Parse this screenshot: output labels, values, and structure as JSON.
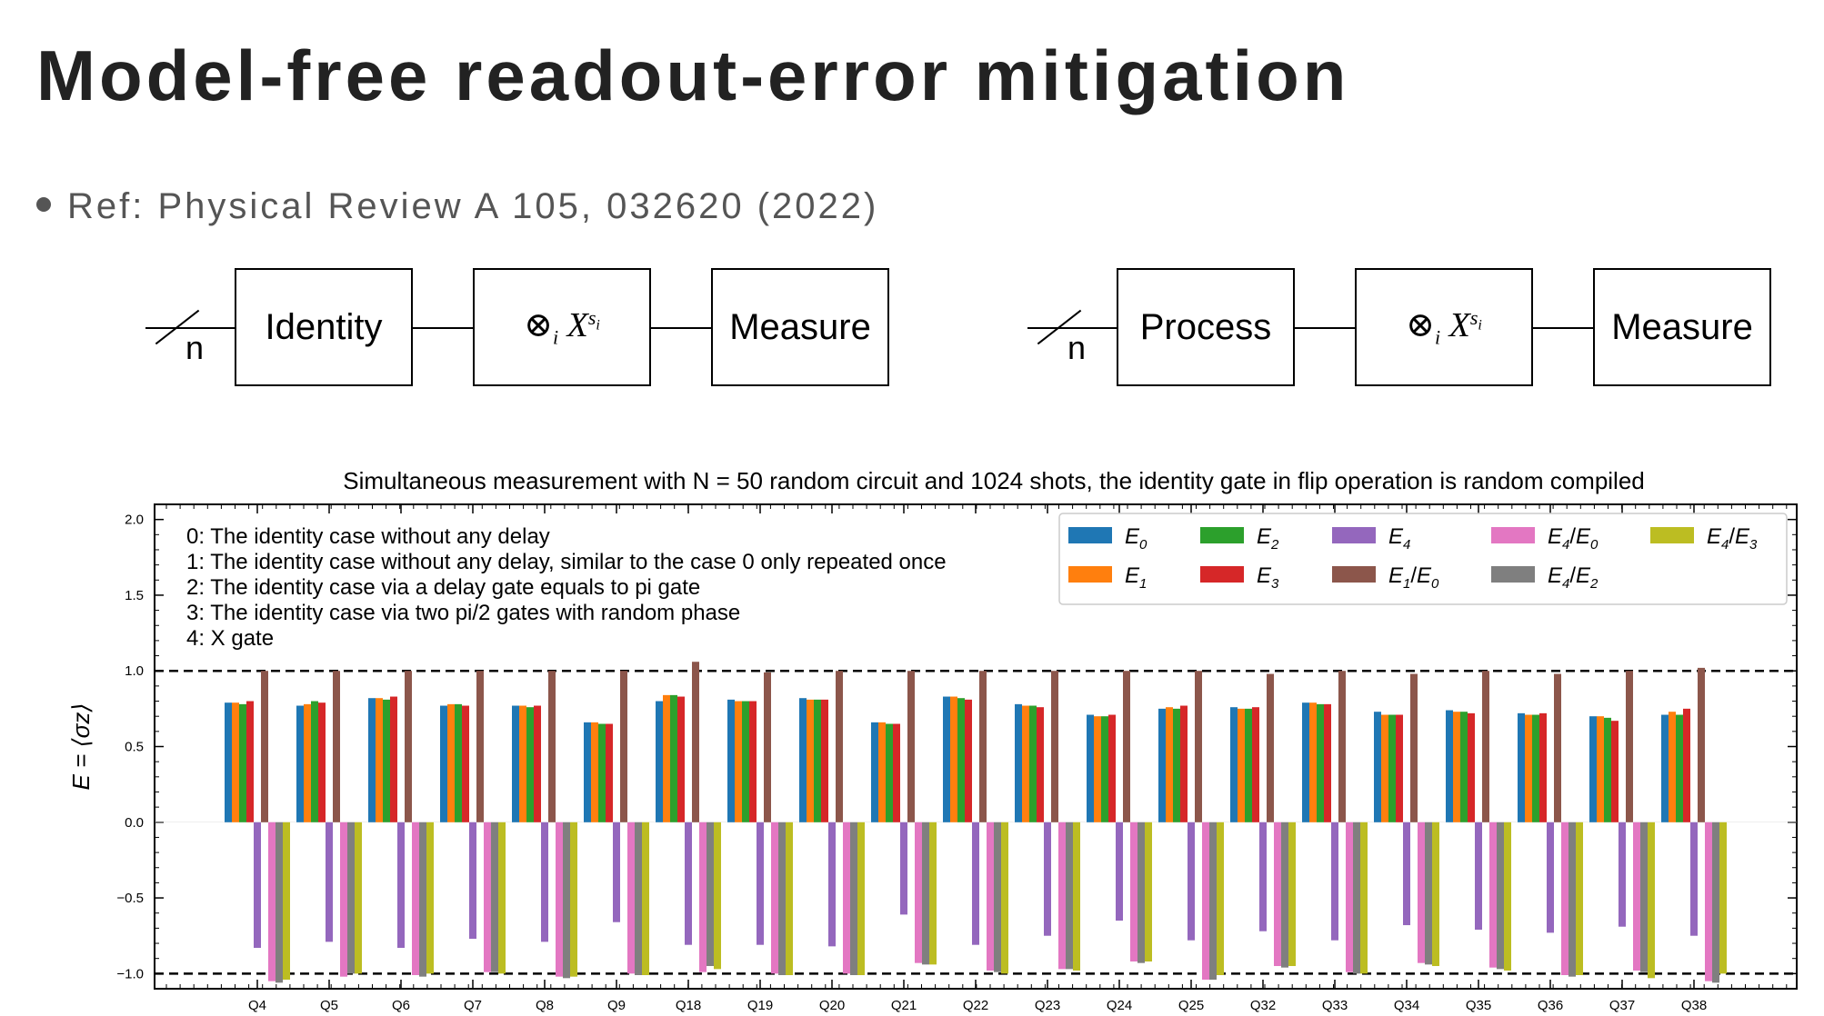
{
  "slide": {
    "title": "Model-free readout-error mitigation",
    "reference": "Ref: Physical Review A 105, 032620 (2022)"
  },
  "circuits": [
    {
      "register": "n",
      "boxes": [
        "Identity",
        "⊗ᵢX^sᵢ",
        "Measure"
      ]
    },
    {
      "register": "n",
      "boxes": [
        "Process",
        "⊗ᵢX^sᵢ",
        "Measure"
      ]
    }
  ],
  "chart_data": {
    "type": "bar",
    "title": "Simultaneous measurement with N = 50 random circuit and 1024 shots, the identity gate in flip operation is random compiled",
    "ylabel": "E = ⟨σz⟩",
    "xlabel": "",
    "ylim": [
      -1.1,
      2.1
    ],
    "yticks": [
      "2.0",
      "1.5",
      "1.0",
      "0.5",
      "0.0",
      "−0.5",
      "−1.0"
    ],
    "yticks_values": [
      2.0,
      1.5,
      1.0,
      0.5,
      0.0,
      -0.5,
      -1.0
    ],
    "reference_lines": [
      1.0,
      -1.0
    ],
    "grid": false,
    "legend_position": "top-right",
    "notes": [
      "0: The identity case without any delay",
      "1: The identity case without any delay, similar to the case 0 only repeated once",
      "2: The identity case via a delay gate equals to pi gate",
      "3: The identity case via two pi/2 gates with random phase",
      "4: X gate"
    ],
    "categories": [
      "Q4",
      "Q5",
      "Q6",
      "Q7",
      "Q8",
      "Q9",
      "Q18",
      "Q19",
      "Q20",
      "Q21",
      "Q22",
      "Q23",
      "Q24",
      "Q25",
      "Q32",
      "Q33",
      "Q34",
      "Q35",
      "Q36",
      "Q37",
      "Q38"
    ],
    "series": [
      {
        "name": "E0",
        "label_base": "E",
        "label_sub": "0",
        "color": "#1f77b4",
        "values": [
          0.79,
          0.77,
          0.82,
          0.77,
          0.77,
          0.66,
          0.8,
          0.81,
          0.82,
          0.66,
          0.83,
          0.78,
          0.71,
          0.75,
          0.76,
          0.79,
          0.73,
          0.74,
          0.72,
          0.7,
          0.71
        ]
      },
      {
        "name": "E1",
        "label_base": "E",
        "label_sub": "1",
        "color": "#ff7f0e",
        "values": [
          0.79,
          0.78,
          0.82,
          0.78,
          0.77,
          0.66,
          0.84,
          0.8,
          0.81,
          0.66,
          0.83,
          0.77,
          0.7,
          0.76,
          0.75,
          0.79,
          0.71,
          0.73,
          0.71,
          0.7,
          0.73
        ]
      },
      {
        "name": "E2",
        "label_base": "E",
        "label_sub": "2",
        "color": "#2ca02c",
        "values": [
          0.78,
          0.8,
          0.81,
          0.78,
          0.76,
          0.65,
          0.84,
          0.8,
          0.81,
          0.65,
          0.82,
          0.77,
          0.7,
          0.75,
          0.75,
          0.78,
          0.71,
          0.73,
          0.71,
          0.69,
          0.71
        ]
      },
      {
        "name": "E3",
        "label_base": "E",
        "label_sub": "3",
        "color": "#d62728",
        "values": [
          0.8,
          0.79,
          0.83,
          0.77,
          0.77,
          0.65,
          0.83,
          0.8,
          0.81,
          0.65,
          0.81,
          0.76,
          0.71,
          0.77,
          0.76,
          0.78,
          0.71,
          0.72,
          0.72,
          0.67,
          0.75
        ]
      },
      {
        "name": "E4",
        "label_base": "E",
        "label_sub": "4",
        "color": "#9467bd",
        "values": [
          -0.83,
          -0.79,
          -0.83,
          -0.77,
          -0.79,
          -0.66,
          -0.81,
          -0.81,
          -0.82,
          -0.61,
          -0.81,
          -0.75,
          -0.65,
          -0.78,
          -0.72,
          -0.78,
          -0.68,
          -0.71,
          -0.73,
          -0.69,
          -0.75
        ]
      },
      {
        "name": "E1/E0",
        "label_base": "E",
        "label_sub": "1",
        "label_den_sub": "0",
        "color": "#8c564b",
        "values": [
          1.0,
          1.0,
          1.0,
          1.0,
          1.0,
          1.0,
          1.06,
          0.99,
          1.0,
          1.0,
          1.0,
          1.0,
          1.0,
          1.0,
          0.98,
          1.0,
          0.98,
          1.0,
          0.98,
          1.0,
          1.02
        ]
      },
      {
        "name": "E4/E0",
        "label_base": "E",
        "label_sub": "4",
        "label_den_sub": "0",
        "color": "#e377c2",
        "values": [
          -1.05,
          -1.02,
          -1.01,
          -0.99,
          -1.02,
          -1.0,
          -0.99,
          -1.0,
          -1.0,
          -0.93,
          -0.98,
          -0.97,
          -0.92,
          -1.04,
          -0.95,
          -0.99,
          -0.93,
          -0.96,
          -1.01,
          -0.98,
          -1.05
        ]
      },
      {
        "name": "E4/E2",
        "label_base": "E",
        "label_sub": "4",
        "label_den_sub": "2",
        "color": "#7f7f7f",
        "values": [
          -1.06,
          -1.0,
          -1.02,
          -0.99,
          -1.03,
          -1.01,
          -0.95,
          -1.01,
          -1.01,
          -0.94,
          -0.99,
          -0.97,
          -0.93,
          -1.04,
          -0.96,
          -1.0,
          -0.94,
          -0.97,
          -1.02,
          -0.99,
          -1.06
        ]
      },
      {
        "name": "E4/E3",
        "label_base": "E",
        "label_sub": "4",
        "label_den_sub": "3",
        "color": "#bcbd22",
        "values": [
          -1.04,
          -1.0,
          -1.0,
          -1.0,
          -1.02,
          -1.01,
          -0.97,
          -1.01,
          -1.01,
          -0.94,
          -1.0,
          -0.98,
          -0.92,
          -1.01,
          -0.95,
          -1.0,
          -0.95,
          -0.98,
          -1.01,
          -1.03,
          -1.0
        ]
      }
    ],
    "legend_layout": [
      [
        "E0",
        "E2",
        "E4",
        "E4/E0",
        "E4/E3"
      ],
      [
        "E1",
        "E3",
        "E1/E0",
        "E4/E2"
      ]
    ]
  }
}
